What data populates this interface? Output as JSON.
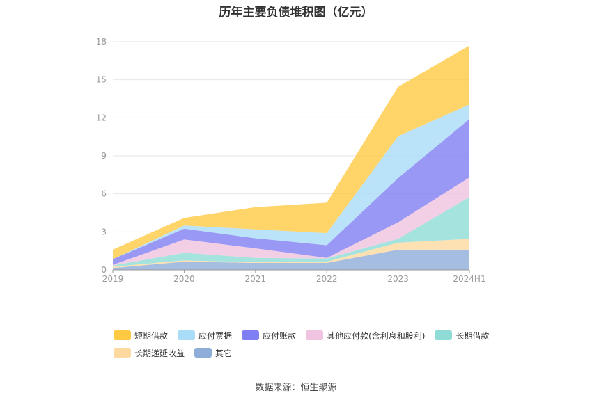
{
  "chart_data": {
    "type": "area",
    "stacked": true,
    "title": "历年主要负债堆积图（亿元）",
    "categories": [
      "2019",
      "2020",
      "2021",
      "2022",
      "2023",
      "2024H1"
    ],
    "ylim": [
      0,
      18
    ],
    "yticks": [
      "0",
      "3",
      "6",
      "9",
      "12",
      "15",
      "18"
    ],
    "grid": "horizontal",
    "legend_position": "bottom",
    "series": [
      {
        "name": "其它",
        "color": "#8fadd9",
        "values": [
          0.15,
          0.65,
          0.55,
          0.55,
          1.6,
          1.6
        ]
      },
      {
        "name": "长期递延收益",
        "color": "#fdd9a0",
        "values": [
          0.1,
          0.1,
          0.05,
          0.1,
          0.55,
          0.85
        ]
      },
      {
        "name": "长期借款",
        "color": "#8fdcd6",
        "values": [
          0.1,
          0.6,
          0.35,
          0.25,
          0.3,
          3.3
        ]
      },
      {
        "name": "其他应付款(含利息和股利)",
        "color": "#f0c3e0",
        "values": [
          0.05,
          1.05,
          0.75,
          0.05,
          1.3,
          1.55
        ]
      },
      {
        "name": "应付账款",
        "color": "#7f7ff3",
        "values": [
          0.45,
          0.85,
          0.8,
          1.0,
          3.5,
          4.6
        ]
      },
      {
        "name": "应付票据",
        "color": "#a9dcf7",
        "values": [
          0.0,
          0.25,
          0.7,
          0.95,
          3.3,
          1.15
        ]
      },
      {
        "name": "短期借款",
        "color": "#ffc942",
        "values": [
          0.75,
          0.6,
          1.75,
          2.4,
          3.9,
          4.65
        ]
      }
    ],
    "legend_order": [
      "短期借款",
      "应付票据",
      "应付账款",
      "其他应付款(含利息和股利)",
      "长期借款",
      "长期递延收益",
      "其它"
    ]
  },
  "source_text": "数据来源：恒生聚源"
}
